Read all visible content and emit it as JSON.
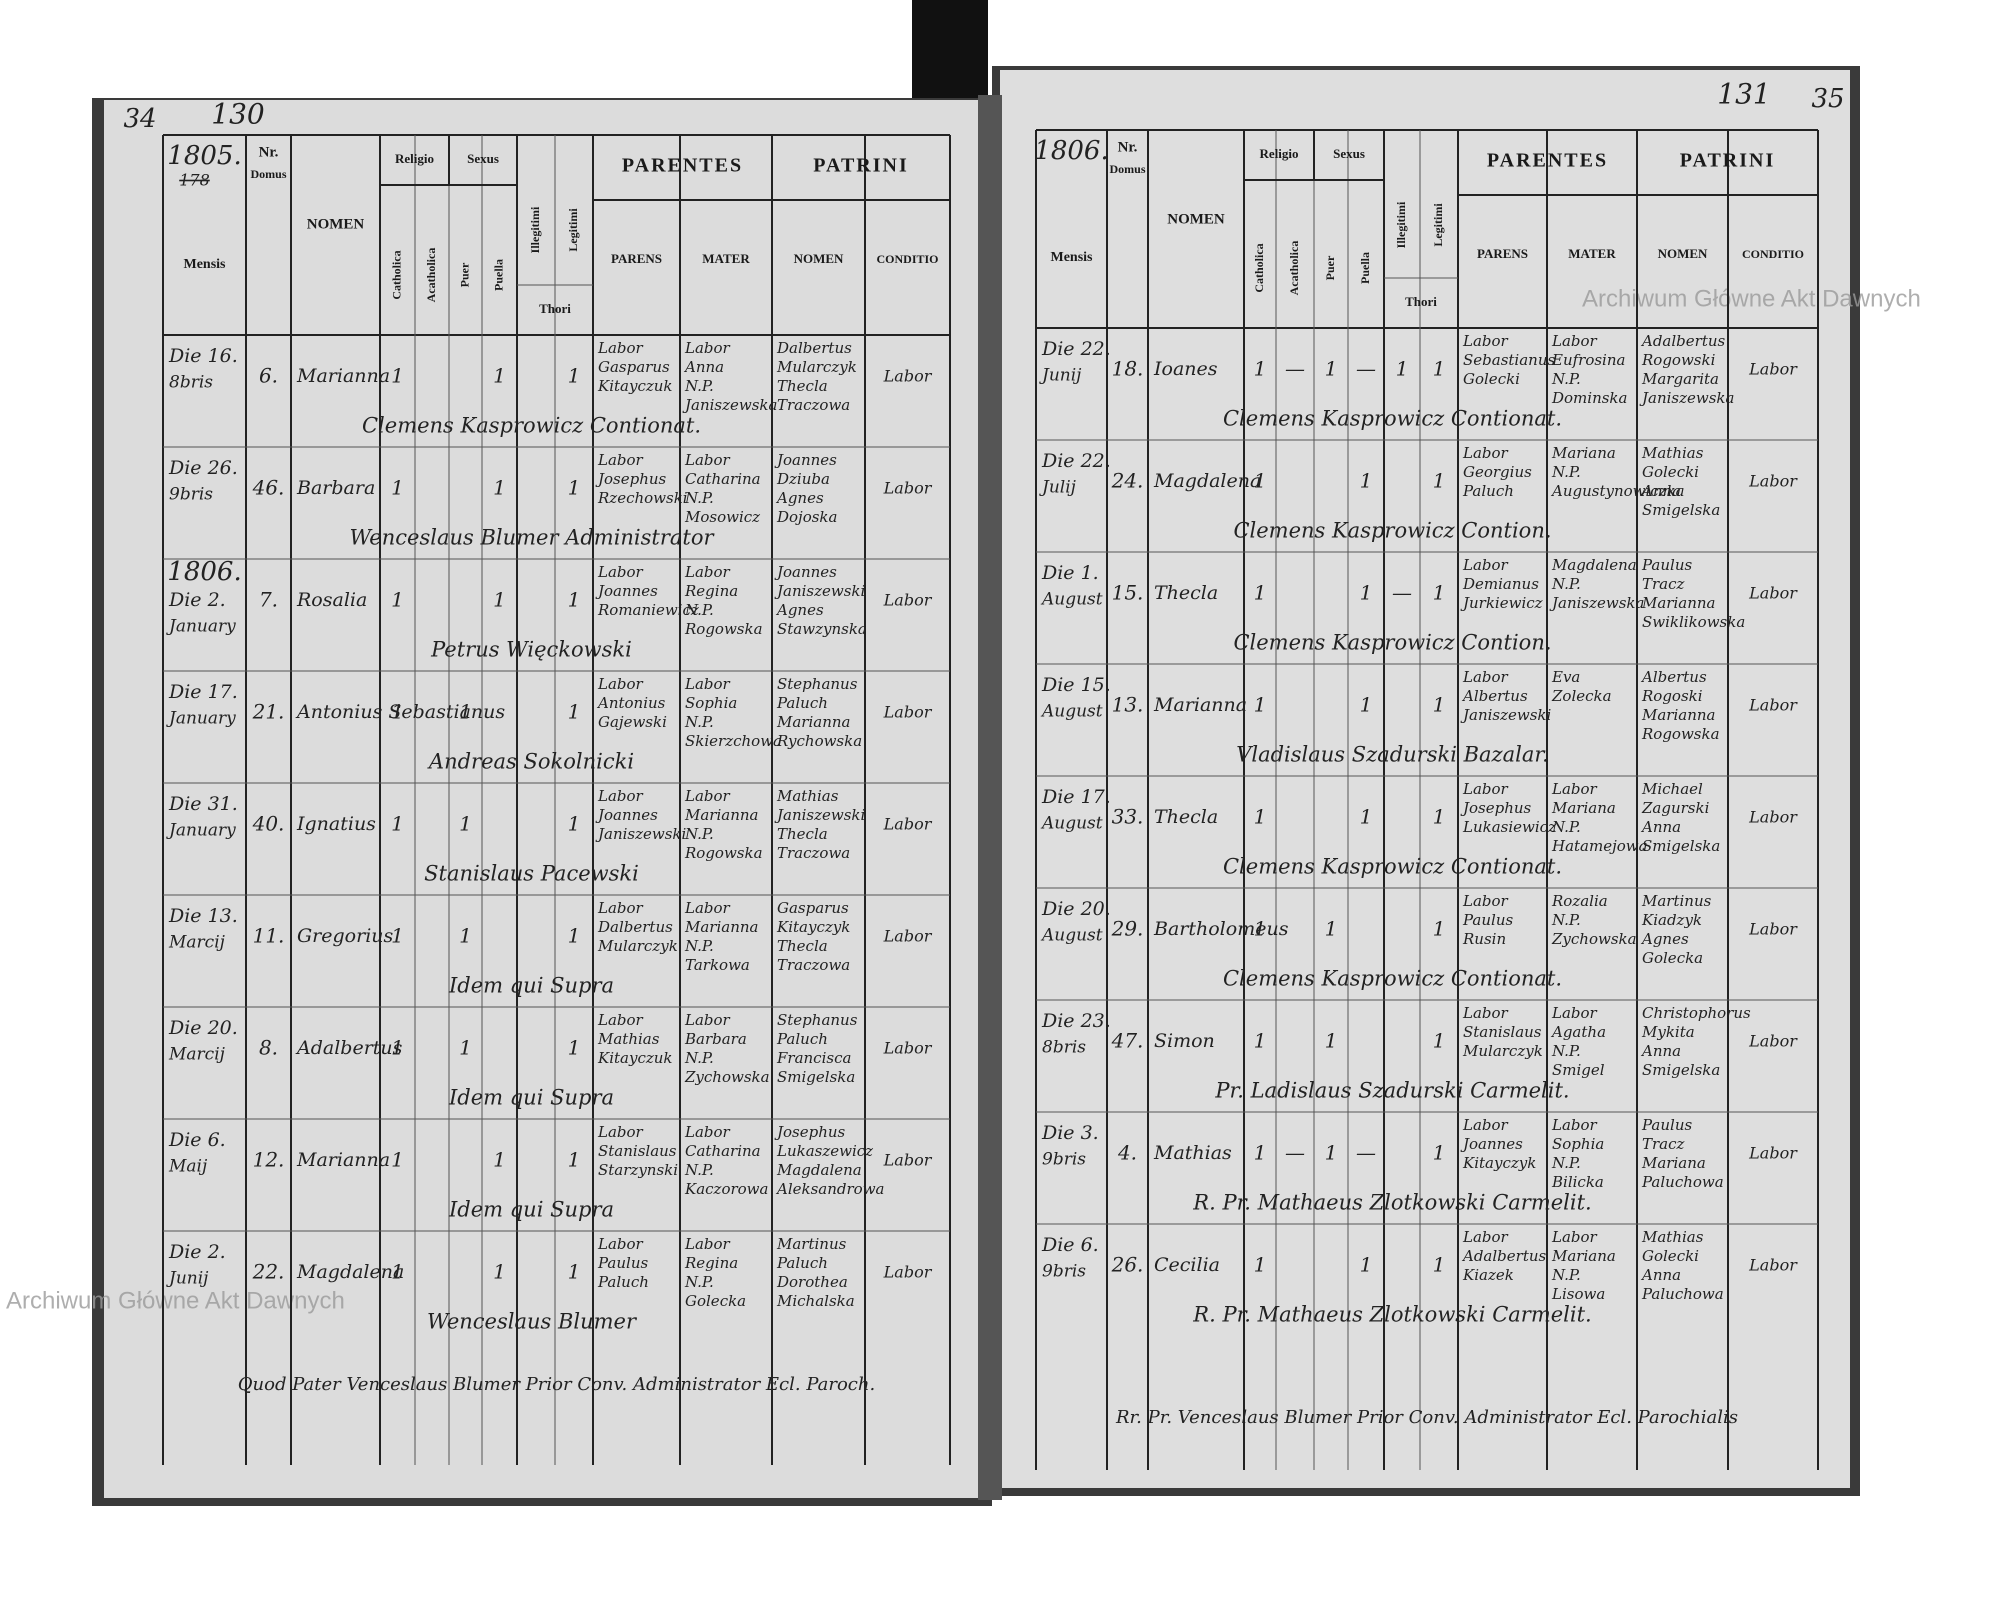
{
  "watermarks": [
    "Archiwum Główne Akt Dawnych",
    "Archiwum Główne Akt Dawnych"
  ],
  "left_page": {
    "corner_number": "34",
    "page_number": "130",
    "year": "1805.",
    "struck_year": "178",
    "year_mark": "1806.",
    "header": {
      "mensis": "Mensis",
      "nr": "Nr.",
      "domus": "Domus",
      "nomen": "NOMEN",
      "religio": "Religio",
      "sexus": "Sexus",
      "catholica": "Catholica",
      "acatholica": "Acatholica",
      "puer": "Puer",
      "puella": "Puella",
      "illegitimi": "Illegitimi",
      "legitimi": "Legitimi",
      "thori": "Thori",
      "parentes": "PARENTES",
      "patrini": "PATRINI",
      "parens": "PARENS",
      "mater": "MATER",
      "patrini_nomen": "NOMEN",
      "conditio": "CONDITIO"
    },
    "rows": [
      {
        "day": "Die 16.",
        "month": "8bris",
        "domus": "6.",
        "nomen": "Marianna",
        "marks": [
          "1",
          null,
          null,
          "1",
          null,
          "1"
        ],
        "parens": [
          "Labor",
          "Gasparus",
          "Kitayczuk"
        ],
        "mater": [
          "Labor",
          "Anna",
          "N.P.",
          "Janiszewska"
        ],
        "patrini": [
          "Dalbertus",
          "Mularczyk",
          "Thecla",
          "Traczowa"
        ],
        "conditio": "Labor",
        "note": "Clemens Kasprowicz Contionat."
      },
      {
        "day": "Die 26.",
        "month": "9bris",
        "domus": "46.",
        "nomen": "Barbara",
        "marks": [
          "1",
          null,
          null,
          "1",
          null,
          "1"
        ],
        "parens": [
          "Labor",
          "Josephus",
          "Rzechowski"
        ],
        "mater": [
          "Labor",
          "Catharina",
          "N.P.",
          "Mosowicz"
        ],
        "patrini": [
          "Joannes",
          "Dziuba",
          "Agnes",
          "Dojoska"
        ],
        "conditio": "Labor",
        "note": "Wenceslaus Blumer Administrator"
      },
      {
        "day": "Die 2.",
        "month": "January",
        "domus": "7.",
        "nomen": "Rosalia",
        "marks": [
          "1",
          null,
          null,
          "1",
          null,
          "1"
        ],
        "parens": [
          "Labor",
          "Joannes",
          "Romaniewicz"
        ],
        "mater": [
          "Labor",
          "Regina",
          "N.P.",
          "Rogowska"
        ],
        "patrini": [
          "Joannes",
          "Janiszewski",
          "Agnes",
          "Stawzynska"
        ],
        "conditio": "Labor",
        "note": "Petrus Więckowski"
      },
      {
        "day": "Die 17.",
        "month": "January",
        "domus": "21.",
        "nomen": "Antonius Sebastianus",
        "marks": [
          "1",
          null,
          "1",
          null,
          null,
          "1"
        ],
        "parens": [
          "Labor",
          "Antonius",
          "Gajewski"
        ],
        "mater": [
          "Labor",
          "Sophia",
          "N.P.",
          "Skierzchowa"
        ],
        "patrini": [
          "Stephanus",
          "Paluch",
          "Marianna",
          "Rychowska"
        ],
        "conditio": "Labor",
        "note": "Andreas Sokolnicki"
      },
      {
        "day": "Die 31.",
        "month": "January",
        "domus": "40.",
        "nomen": "Ignatius",
        "marks": [
          "1",
          null,
          "1",
          null,
          null,
          "1"
        ],
        "parens": [
          "Labor",
          "Joannes",
          "Janiszewski"
        ],
        "mater": [
          "Labor",
          "Marianna",
          "N.P.",
          "Rogowska"
        ],
        "patrini": [
          "Mathias",
          "Janiszewski",
          "Thecla",
          "Traczowa"
        ],
        "conditio": "Labor",
        "note": "Stanislaus Pacewski"
      },
      {
        "day": "Die 13.",
        "month": "Marcij",
        "domus": "11.",
        "nomen": "Gregorius",
        "marks": [
          "1",
          null,
          "1",
          null,
          null,
          "1"
        ],
        "parens": [
          "Labor",
          "Dalbertus",
          "Mularczyk"
        ],
        "mater": [
          "Labor",
          "Marianna",
          "N.P.",
          "Tarkowa"
        ],
        "patrini": [
          "Gasparus",
          "Kitayczyk",
          "Thecla",
          "Traczowa"
        ],
        "conditio": "Labor",
        "note": "Idem qui Supra"
      },
      {
        "day": "Die 20.",
        "month": "Marcij",
        "domus": "8.",
        "nomen": "Adalbertus",
        "marks": [
          "1",
          null,
          "1",
          null,
          null,
          "1"
        ],
        "parens": [
          "Labor",
          "Mathias",
          "Kitayczuk"
        ],
        "mater": [
          "Labor",
          "Barbara",
          "N.P.",
          "Zychowska"
        ],
        "patrini": [
          "Stephanus",
          "Paluch",
          "Francisca",
          "Smigelska"
        ],
        "conditio": "Labor",
        "note": "Idem qui Supra"
      },
      {
        "day": "Die 6.",
        "month": "Maij",
        "domus": "12.",
        "nomen": "Marianna",
        "marks": [
          "1",
          null,
          null,
          "1",
          null,
          "1"
        ],
        "parens": [
          "Labor",
          "Stanislaus",
          "Starzynski"
        ],
        "mater": [
          "Labor",
          "Catharina",
          "N.P.",
          "Kaczorowa"
        ],
        "patrini": [
          "Josephus",
          "Lukaszewicz",
          "Magdalena",
          "Aleksandrowa"
        ],
        "conditio": "Labor",
        "note": "Idem qui Supra"
      },
      {
        "day": "Die 2.",
        "month": "Junij",
        "domus": "22.",
        "nomen": "Magdalena",
        "marks": [
          "1",
          null,
          null,
          "1",
          null,
          "1"
        ],
        "parens": [
          "Labor",
          "Paulus",
          "Paluch"
        ],
        "mater": [
          "Labor",
          "Regina",
          "N.P.",
          "Golecka"
        ],
        "patrini": [
          "Martinus",
          "Paluch",
          "Dorothea",
          "Michalska"
        ],
        "conditio": "Labor",
        "note": "Wenceslaus Blumer"
      }
    ],
    "footer": "Quod Pater Venceslaus Blumer Prior Conv. Administrator Ecl. Paroch."
  },
  "right_page": {
    "corner_number": "35",
    "page_number": "131",
    "year": "1806.",
    "header": {
      "mensis": "Mensis",
      "nr": "Nr.",
      "domus": "Domus",
      "nomen": "NOMEN",
      "religio": "Religio",
      "sexus": "Sexus",
      "catholica": "Catholica",
      "acatholica": "Acatholica",
      "puer": "Puer",
      "puella": "Puella",
      "illegitimi": "Illegitimi",
      "legitimi": "Legitimi",
      "thori": "Thori",
      "parentes": "PARENTES",
      "patrini": "PATRINI",
      "parens": "PARENS",
      "mater": "MATER",
      "patrini_nomen": "NOMEN",
      "conditio": "CONDITIO"
    },
    "rows": [
      {
        "day": "Die 22.",
        "month": "Junij",
        "domus": "18.",
        "nomen": "Ioanes",
        "marks": [
          "1",
          "—",
          "1",
          "—",
          "1",
          "1"
        ],
        "parens": [
          "Labor",
          "Sebastianus",
          "Golecki"
        ],
        "mater": [
          "Labor",
          "Eufrosina",
          "N.P.",
          "Dominska"
        ],
        "patrini": [
          "Adalbertus",
          "Rogowski",
          "Margarita",
          "Janiszewska"
        ],
        "conditio": "Labor",
        "note": "Clemens Kasprowicz Contionat."
      },
      {
        "day": "Die 22.",
        "month": "Julij",
        "domus": "24.",
        "nomen": "Magdalena",
        "marks": [
          "1",
          null,
          null,
          "1",
          null,
          "1"
        ],
        "parens": [
          "Labor",
          "Georgius",
          "Paluch"
        ],
        "mater": [
          "Mariana",
          "N.P.",
          "Augustynowiczka"
        ],
        "patrini": [
          "Mathias",
          "Golecki",
          "Anna",
          "Smigelska"
        ],
        "conditio": "Labor",
        "note": "Clemens Kasprowicz Contion."
      },
      {
        "day": "Die 1.",
        "month": "August",
        "domus": "15.",
        "nomen": "Thecla",
        "marks": [
          "1",
          null,
          null,
          "1",
          "—",
          "1"
        ],
        "parens": [
          "Labor",
          "Demianus",
          "Jurkiewicz"
        ],
        "mater": [
          "Magdalena",
          "N.P.",
          "Janiszewska"
        ],
        "patrini": [
          "Paulus",
          "Tracz",
          "Marianna",
          "Swiklikowska"
        ],
        "conditio": "Labor",
        "note": "Clemens Kasprowicz Contion."
      },
      {
        "day": "Die 15.",
        "month": "August",
        "domus": "13.",
        "nomen": "Marianna",
        "marks": [
          "1",
          null,
          null,
          "1",
          null,
          "1"
        ],
        "parens": [
          "Labor",
          "Albertus",
          "Janiszewski"
        ],
        "mater": [
          "Eva",
          "Zolecka"
        ],
        "patrini": [
          "Albertus",
          "Rogoski",
          "Marianna",
          "Rogowska"
        ],
        "conditio": "Labor",
        "note": "Vladislaus Szadurski Bazalar."
      },
      {
        "day": "Die 17.",
        "month": "August",
        "domus": "33.",
        "nomen": "Thecla",
        "marks": [
          "1",
          null,
          null,
          "1",
          null,
          "1"
        ],
        "parens": [
          "Labor",
          "Josephus",
          "Lukasiewicz"
        ],
        "mater": [
          "Labor",
          "Mariana",
          "N.P.",
          "Hatamejowa"
        ],
        "patrini": [
          "Michael",
          "Zagurski",
          "Anna",
          "Smigelska"
        ],
        "conditio": "Labor",
        "note": "Clemens Kasprowicz Contionat."
      },
      {
        "day": "Die 20.",
        "month": "August",
        "domus": "29.",
        "nomen": "Bartholomeus",
        "marks": [
          "1",
          null,
          "1",
          null,
          null,
          "1"
        ],
        "parens": [
          "Labor",
          "Paulus",
          "Rusin"
        ],
        "mater": [
          "Rozalia",
          "N.P.",
          "Zychowska"
        ],
        "patrini": [
          "Martinus",
          "Kiadzyk",
          "Agnes",
          "Golecka"
        ],
        "conditio": "Labor",
        "note": "Clemens Kasprowicz Contionat."
      },
      {
        "day": "Die 23.",
        "month": "8bris",
        "domus": "47.",
        "nomen": "Simon",
        "marks": [
          "1",
          null,
          "1",
          null,
          null,
          "1"
        ],
        "parens": [
          "Labor",
          "Stanislaus",
          "Mularczyk"
        ],
        "mater": [
          "Labor",
          "Agatha",
          "N.P.",
          "Smigel"
        ],
        "patrini": [
          "Christophorus",
          "Mykita",
          "Anna",
          "Smigelska"
        ],
        "conditio": "Labor",
        "note": "Pr. Ladislaus Szadurski Carmelit."
      },
      {
        "day": "Die 3.",
        "month": "9bris",
        "domus": "4.",
        "nomen": "Mathias",
        "marks": [
          "1",
          "—",
          "1",
          "—",
          null,
          "1"
        ],
        "parens": [
          "Labor",
          "Joannes",
          "Kitayczyk"
        ],
        "mater": [
          "Labor",
          "Sophia",
          "N.P.",
          "Bilicka"
        ],
        "patrini": [
          "Paulus",
          "Tracz",
          "Mariana",
          "Paluchowa"
        ],
        "conditio": "Labor",
        "note": "R. Pr. Mathaeus Zlotkowski Carmelit."
      },
      {
        "day": "Die 6.",
        "month": "9bris",
        "domus": "26.",
        "nomen": "Cecilia",
        "marks": [
          "1",
          null,
          null,
          "1",
          null,
          "1"
        ],
        "parens": [
          "Labor",
          "Adalbertus",
          "Kiazek"
        ],
        "mater": [
          "Labor",
          "Mariana",
          "N.P.",
          "Lisowa"
        ],
        "patrini": [
          "Mathias",
          "Golecki",
          "Anna",
          "Paluchowa"
        ],
        "conditio": "Labor",
        "note": "R. Pr. Mathaeus Zlotkowski Carmelit."
      }
    ],
    "footer": "Rr. Pr. Venceslaus Blumer Prior Conv. Administrator Ecl. Parochialis"
  }
}
